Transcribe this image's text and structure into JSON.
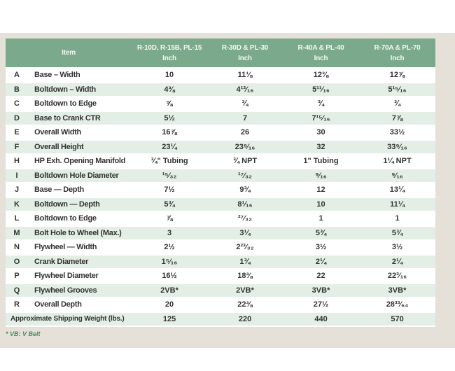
{
  "table": {
    "item_header": "Item",
    "columns": [
      {
        "line1": "R-10D, R-15B, PL-15",
        "line2": "Inch"
      },
      {
        "line1": "R-30D & PL-30",
        "line2": "Inch"
      },
      {
        "line1": "R-40A & PL-40",
        "line2": "Inch"
      },
      {
        "line1": "R-70A & PL-70",
        "line2": "Inch"
      }
    ],
    "rows": [
      {
        "letter": "A",
        "item": "Base – Width",
        "values": [
          "10",
          "11⅛",
          "12⅜",
          "12⅞"
        ]
      },
      {
        "letter": "B",
        "item": "Boltdown – Width",
        "values": [
          "4⅜",
          "4¹³⁄₁₆",
          "5¹¹⁄₁₆",
          "5¹⁵⁄₁₆"
        ]
      },
      {
        "letter": "C",
        "item": "Boltdown to Edge",
        "values": [
          "⅝",
          "¾",
          "¾",
          "¾"
        ]
      },
      {
        "letter": "D",
        "item": "Base to Crank CTR",
        "values": [
          "5½",
          "7",
          "7¹⁵⁄₁₆",
          "7⅞"
        ]
      },
      {
        "letter": "E",
        "item": "Overall Width",
        "values": [
          "16⅞",
          "26",
          "30",
          "33½"
        ]
      },
      {
        "letter": "F",
        "item": "Overall Height",
        "values": [
          "23¼",
          "23⁹⁄₁₆",
          "32",
          "33⁹⁄₁₆"
        ]
      },
      {
        "letter": "H",
        "item": "HP Exh. Opening Manifold",
        "values": [
          "¾\" Tubing",
          "¾ NPT",
          "1\" Tubing",
          "1¼ NPT"
        ]
      },
      {
        "letter": "I",
        "item": "Boltdown Hole Diameter",
        "values": [
          "¹⁵⁄₃₂",
          "¹⁷⁄₃₂",
          "⁹⁄₁₆",
          "⁹⁄₁₆"
        ]
      },
      {
        "letter": "J",
        "item": "Base — Depth",
        "values": [
          "7½",
          "9¾",
          "12",
          "13¼"
        ]
      },
      {
        "letter": "K",
        "item": "Boltdown — Depth",
        "values": [
          "5¾",
          "8¹⁄₁₆",
          "10",
          "11¼"
        ]
      },
      {
        "letter": "L",
        "item": "Boltdown to Edge",
        "values": [
          "⅞",
          "²⁷⁄₃₂",
          "1",
          "1"
        ]
      },
      {
        "letter": "M",
        "item": "Bolt Hole to Wheel (Max.)",
        "values": [
          "3",
          "3¼",
          "5¾",
          "5¾"
        ]
      },
      {
        "letter": "N",
        "item": "Flywheel — Width",
        "values": [
          "2½",
          "2²³⁄₃₂",
          "3½",
          "3½"
        ]
      },
      {
        "letter": "O",
        "item": "Crank Diameter",
        "values": [
          "1⁵⁄₁₆",
          "1¾",
          "2¼",
          "2¼"
        ]
      },
      {
        "letter": "P",
        "item": "Flywheel Diameter",
        "values": [
          "16½",
          "18⅜",
          "22",
          "22³⁄₁₆"
        ]
      },
      {
        "letter": "Q",
        "item": "Flywheel Grooves",
        "values": [
          "2VB*",
          "2VB*",
          "3VB*",
          "3VB*"
        ]
      },
      {
        "letter": "R",
        "item": "Overall Depth",
        "values": [
          "20",
          "22⅜",
          "27½",
          "28³³⁄₆₄"
        ]
      }
    ],
    "footer_row": {
      "label": "Approximate Shipping Weight (lbs.)",
      "values": [
        "125",
        "220",
        "440",
        "570"
      ]
    },
    "footnote": "* VB: V Belt"
  },
  "colors": {
    "header_green": "#7ba98c",
    "stripe_green": "#e3eee6",
    "panel_gray": "#e5e0d8",
    "text": "#333333",
    "header_text": "#f5f7f3",
    "footnote_green": "#44905f"
  }
}
